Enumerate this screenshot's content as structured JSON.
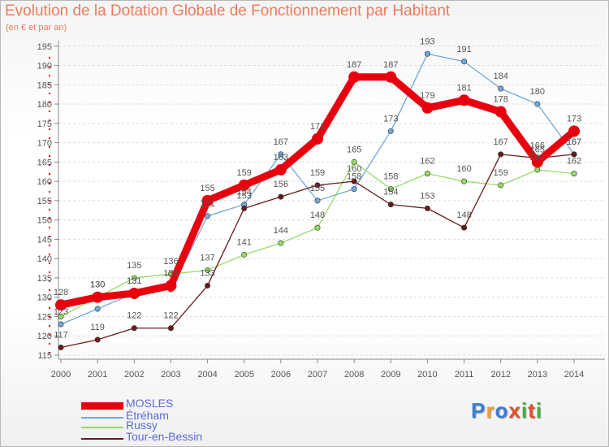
{
  "title": "Evolution de la Dotation Globale de Fonctionnement par Habitant",
  "subtitle": "(en € et par an)",
  "logo": {
    "text": "Proxiti",
    "colors": [
      "#3a7fd5",
      "#f0a030",
      "#3a7fd5",
      "#e0502a",
      "#40b040",
      "#e0502a",
      "#40b040"
    ]
  },
  "chart_data": {
    "type": "line",
    "title": "Evolution de la Dotation Globale de Fonctionnement par Habitant",
    "subtitle": "(en € et par an)",
    "x": [
      2000,
      2001,
      2002,
      2003,
      2004,
      2005,
      2006,
      2007,
      2008,
      2009,
      2010,
      2011,
      2012,
      2013,
      2014
    ],
    "ylim": [
      115,
      196
    ],
    "yticks": [
      115,
      120,
      125,
      130,
      135,
      140,
      145,
      150,
      155,
      160,
      165,
      170,
      175,
      180,
      185,
      190,
      195
    ],
    "grid": "horizontal dashed",
    "legend_position": "bottom-left",
    "series": [
      {
        "name": "MOSLES",
        "color": "#e8000f",
        "highlight": true,
        "values": [
          128,
          130,
          131,
          133,
          155,
          159,
          163,
          171,
          187,
          187,
          179,
          181,
          178,
          165,
          173
        ],
        "labels": [
          "128",
          "130",
          "131",
          "133",
          "155",
          "159",
          "163",
          "171",
          "187",
          "187",
          "179",
          "181",
          "178",
          "165",
          "173"
        ]
      },
      {
        "name": "Étréham",
        "color": "#6fa8dc",
        "highlight": false,
        "values": [
          123,
          127,
          131,
          132,
          151,
          154,
          167,
          155,
          158,
          173,
          193,
          191,
          184,
          180,
          167
        ],
        "labels": [
          "123",
          "",
          "131",
          "",
          "151",
          "154",
          "167",
          "155",
          "158",
          "173",
          "193",
          "191",
          "184",
          "180",
          "167"
        ]
      },
      {
        "name": "Russy",
        "color": "#96db64",
        "highlight": false,
        "values": [
          125,
          130,
          135,
          136,
          137,
          141,
          144,
          148,
          165,
          158,
          162,
          160,
          159,
          163,
          162
        ],
        "labels": [
          "",
          "130",
          "135",
          "136",
          "137",
          "141",
          "144",
          "148",
          "165",
          "158",
          "162",
          "160",
          "159",
          "163",
          "162"
        ]
      },
      {
        "name": "Tour-en-Bessin",
        "color": "#6b1a1a",
        "highlight": false,
        "values": [
          117,
          119,
          122,
          122,
          133,
          153,
          156,
          159,
          160,
          154,
          153,
          148,
          167,
          166,
          167
        ],
        "labels": [
          "117",
          "119",
          "122",
          "122",
          "133",
          "153",
          "156",
          "159",
          "160",
          "154",
          "153",
          "148",
          "167",
          "166",
          "167"
        ]
      }
    ]
  }
}
